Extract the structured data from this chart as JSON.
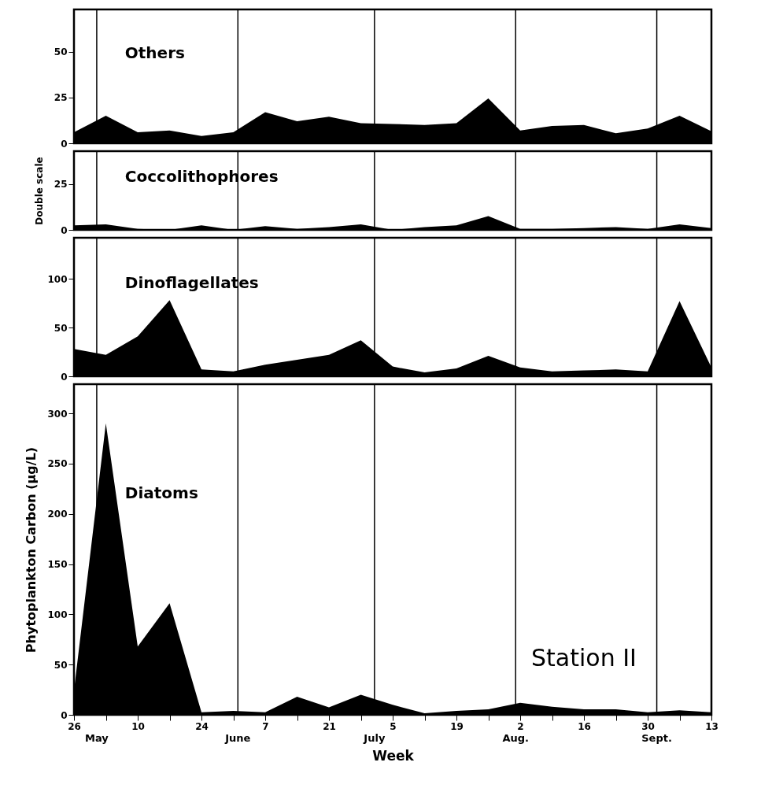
{
  "chart_data": [
    {
      "type": "area",
      "xlim": [
        "--04-26",
        "--09-13"
      ],
      "ylim": [
        0,
        73
      ],
      "yticks": [
        0,
        25,
        50
      ],
      "tick_labels": "y",
      "x": [
        "--04-26",
        "--05-03",
        "--05-10",
        "--05-17",
        "--05-24",
        "--05-31",
        "--06-07",
        "--06-14",
        "--06-21",
        "--06-28",
        "--07-05",
        "--07-12",
        "--07-19",
        "--07-26",
        "--08-02",
        "--08-09",
        "--08-16",
        "--08-23",
        "--08-30",
        "--09-06",
        "--09-13"
      ],
      "series": [
        {
          "name": "Others",
          "color": "#000000",
          "values": [
            6,
            15,
            6,
            7,
            4,
            6,
            17,
            12,
            14.5,
            11,
            10.5,
            10,
            11,
            24.5,
            7,
            9.5,
            10,
            5.5,
            8,
            15,
            6.5
          ]
        }
      ],
      "ref_lines": [
        {
          "axis": "x",
          "value": "--05-01"
        },
        {
          "axis": "x",
          "value": "--06-01"
        },
        {
          "axis": "x",
          "value": "--07-01"
        },
        {
          "axis": "x",
          "value": "--08-01"
        },
        {
          "axis": "x",
          "value": "--09-01"
        }
      ]
    },
    {
      "type": "area",
      "xlim": [
        "--04-26",
        "--09-13"
      ],
      "ylim": [
        0,
        43
      ],
      "yticks": [
        0,
        25
      ],
      "tick_labels": "y",
      "ylabel": "Double scale",
      "x": [
        "--04-26",
        "--05-03",
        "--05-10",
        "--05-17",
        "--05-24",
        "--05-31",
        "--06-07",
        "--06-14",
        "--06-21",
        "--06-28",
        "--07-05",
        "--07-12",
        "--07-19",
        "--07-26",
        "--08-02",
        "--08-09",
        "--08-16",
        "--08-23",
        "--08-30",
        "--09-06",
        "--09-13"
      ],
      "series": [
        {
          "name": "Coccolithophores",
          "color": "#000000",
          "values": [
            2.5,
            3,
            0.5,
            0,
            2.5,
            0,
            2,
            0.5,
            1.5,
            3,
            0,
            1.5,
            2.5,
            7.5,
            0.5,
            0.5,
            1,
            1.5,
            0.5,
            3,
            1
          ]
        }
      ],
      "ref_lines": [
        {
          "axis": "x",
          "value": "--05-01"
        },
        {
          "axis": "x",
          "value": "--06-01"
        },
        {
          "axis": "x",
          "value": "--07-01"
        },
        {
          "axis": "x",
          "value": "--08-01"
        },
        {
          "axis": "x",
          "value": "--09-01"
        }
      ]
    },
    {
      "type": "area",
      "xlim": [
        "--04-26",
        "--09-13"
      ],
      "ylim": [
        0,
        142
      ],
      "yticks": [
        0,
        50,
        100
      ],
      "tick_labels": "y",
      "x": [
        "--04-26",
        "--05-03",
        "--05-10",
        "--05-17",
        "--05-24",
        "--05-31",
        "--06-07",
        "--06-14",
        "--06-21",
        "--06-28",
        "--07-05",
        "--07-12",
        "--07-19",
        "--07-26",
        "--08-02",
        "--08-09",
        "--08-16",
        "--08-23",
        "--08-30",
        "--09-06",
        "--09-13"
      ],
      "series": [
        {
          "name": "Dinoflagellates",
          "color": "#000000",
          "values": [
            28,
            22,
            41,
            78,
            7,
            5,
            12,
            17,
            22,
            37,
            10,
            4,
            8,
            21,
            9,
            5,
            6,
            7,
            5,
            77,
            9
          ]
        }
      ],
      "ref_lines": [
        {
          "axis": "x",
          "value": "--05-01"
        },
        {
          "axis": "x",
          "value": "--06-01"
        },
        {
          "axis": "x",
          "value": "--07-01"
        },
        {
          "axis": "x",
          "value": "--08-01"
        },
        {
          "axis": "x",
          "value": "--09-01"
        }
      ]
    },
    {
      "type": "area",
      "xlim": [
        "--04-26",
        "--09-13"
      ],
      "ylim": [
        0,
        329
      ],
      "yticks": [
        0,
        50,
        100,
        150,
        200,
        250,
        300
      ],
      "xlabel": "Week",
      "ylabel": "Phytoplankton Carbon (μg/L)",
      "xticks": [
        {
          "value": "--04-26",
          "label": "26"
        },
        {
          "value": "--05-03",
          "label": null
        },
        {
          "value": "--05-10",
          "label": "10"
        },
        {
          "value": "--05-17",
          "label": null
        },
        {
          "value": "--05-24",
          "label": "24"
        },
        {
          "value": "--05-31",
          "label": null
        },
        {
          "value": "--06-07",
          "label": "7"
        },
        {
          "value": "--06-14",
          "label": null
        },
        {
          "value": "--06-21",
          "label": "21"
        },
        {
          "value": "--06-28",
          "label": null
        },
        {
          "value": "--07-05",
          "label": "5"
        },
        {
          "value": "--07-12",
          "label": null
        },
        {
          "value": "--07-19",
          "label": "19"
        },
        {
          "value": "--07-26",
          "label": null
        },
        {
          "value": "--08-02",
          "label": "2"
        },
        {
          "value": "--08-09",
          "label": null
        },
        {
          "value": "--08-16",
          "label": "16"
        },
        {
          "value": "--08-23",
          "label": null
        },
        {
          "value": "--08-30",
          "label": "30"
        },
        {
          "value": "--09-06",
          "label": null
        },
        {
          "value": "--09-13",
          "label": "13"
        }
      ],
      "x": [
        "--04-26",
        "--05-03",
        "--05-10",
        "--05-17",
        "--05-24",
        "--05-31",
        "--06-07",
        "--06-14",
        "--06-21",
        "--06-28",
        "--07-05",
        "--07-12",
        "--07-19",
        "--07-26",
        "--08-02",
        "--08-09",
        "--08-16",
        "--08-23",
        "--08-30",
        "--09-06",
        "--09-13"
      ],
      "series": [
        {
          "name": "Diatoms",
          "color": "#000000",
          "values": [
            24,
            290,
            68,
            111,
            2.5,
            4,
            2.5,
            18,
            7.5,
            20,
            10,
            1.5,
            4,
            5.5,
            12,
            8,
            5.5,
            5.5,
            2.5,
            4.5,
            2.5
          ]
        }
      ],
      "ref_lines": [
        {
          "axis": "x",
          "value": "--05-01",
          "label": "May"
        },
        {
          "axis": "x",
          "value": "--06-01",
          "label": "June"
        },
        {
          "axis": "x",
          "value": "--07-01",
          "label": "July"
        },
        {
          "axis": "x",
          "value": "--08-01",
          "label": "Aug."
        },
        {
          "axis": "x",
          "value": "--09-01",
          "label": "Sept."
        }
      ],
      "annotations": [
        "Station II"
      ]
    }
  ]
}
